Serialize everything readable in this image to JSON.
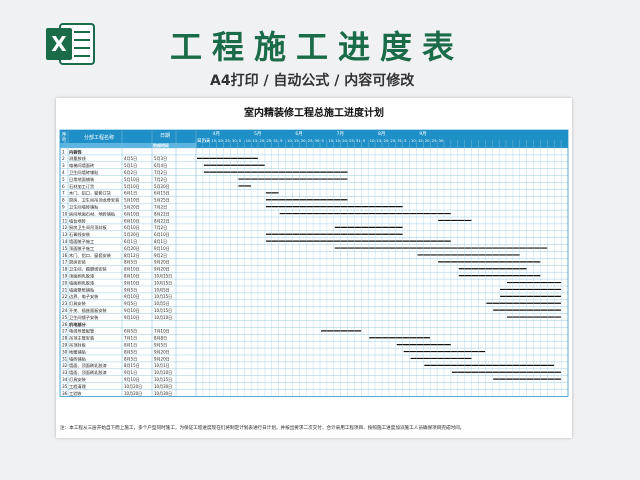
{
  "banner": {
    "title": "工程施工进度表",
    "subtitle": "A4打印 / 自动公式 / 内容可修改",
    "icon": "excel-icon",
    "accent": "#1a6b47"
  },
  "sheet": {
    "title": "室内精装修工程总施工进度计划",
    "header": {
      "seq": "序号",
      "name": "分部工程名称",
      "date": "日期",
      "start": "开始时间",
      "end": "完成时间",
      "days": "日历天",
      "months": [
        "4月",
        "5月",
        "6月",
        "7月",
        "8月",
        "9月"
      ],
      "day_ticks": [
        "5",
        "10",
        "15",
        "20",
        "25",
        "30",
        "5",
        "10",
        "15",
        "20",
        "25",
        "31",
        "5",
        "10",
        "15",
        "20",
        "25",
        "30",
        "5",
        "10",
        "15",
        "20",
        "25",
        "31",
        "5",
        "10",
        "15",
        "20",
        "25",
        "31",
        "5",
        "10",
        "15",
        "20",
        "25",
        "30"
      ]
    },
    "rows": [
      {
        "seq": "1",
        "name": "内装饰",
        "start": "",
        "end": "",
        "group": true
      },
      {
        "seq": "2",
        "name": "测量放线",
        "start": "4月5日",
        "end": "5月3日",
        "bar": [
          0,
          9
        ]
      },
      {
        "seq": "3",
        "name": "电梯间墙面砖",
        "start": "5月1日",
        "end": "6月4日",
        "bar": [
          1,
          10
        ]
      },
      {
        "seq": "4",
        "name": "卫生间墙砖铺贴",
        "start": "6月2日",
        "end": "7月2日",
        "bar": [
          1,
          22
        ]
      },
      {
        "seq": "5",
        "name": "日常地面铺装",
        "start": "5月10日",
        "end": "7月2日",
        "bar": [
          6,
          22
        ]
      },
      {
        "seq": "6",
        "name": "石材加工订货",
        "start": "5月10日",
        "end": "5月20日",
        "bar": [
          6,
          8
        ]
      },
      {
        "seq": "7",
        "name": "木门、铝口、窗套订货",
        "start": "6月1日",
        "end": "6月15日",
        "bar": [
          10,
          12
        ]
      },
      {
        "seq": "8",
        "name": "厨房、卫生间吊顶龙骨安装",
        "start": "5月10日",
        "end": "5月25日",
        "bar": [
          10,
          22
        ]
      },
      {
        "seq": "9",
        "name": "卫生间墙砖铺贴",
        "start": "5月20日",
        "end": "7月2日",
        "bar": [
          10,
          30
        ]
      },
      {
        "seq": "10",
        "name": "房间地面石材、地砖铺贴",
        "start": "6月10日",
        "end": "8月22日",
        "bar": [
          12,
          37
        ]
      },
      {
        "seq": "11",
        "name": "墙台地砖",
        "start": "6月10日",
        "end": "8月22日",
        "bar": [
          35,
          40
        ]
      },
      {
        "seq": "12",
        "name": "厨房卫生间吊顶封板",
        "start": "6月10日",
        "end": "7月2日",
        "bar": [
          20,
          30
        ]
      },
      {
        "seq": "13",
        "name": "石膏线安装",
        "start": "5月20日",
        "end": "6月10日",
        "bar": [
          10,
          30
        ]
      },
      {
        "seq": "14",
        "name": "墙面腻子施工",
        "start": "6月1日",
        "end": "8月1日",
        "bar": [
          10,
          37
        ]
      },
      {
        "seq": "15",
        "name": "顶面腻子施工",
        "start": "6月20日",
        "end": "9月10日",
        "bar": [
          20,
          51
        ]
      },
      {
        "seq": "16",
        "name": "木门、铝口、窗套安装",
        "start": "8月12日",
        "end": "9月2日",
        "bar": [
          32,
          47
        ]
      },
      {
        "seq": "17",
        "name": "厨房安装",
        "start": "8月5日",
        "end": "9月20日",
        "bar": [
          35,
          50
        ]
      },
      {
        "seq": "18",
        "name": "卫生间、踢脚线安装",
        "start": "8月10日",
        "end": "9月20日",
        "bar": [
          38,
          48
        ]
      },
      {
        "seq": "19",
        "name": "顶面刷乳胶漆",
        "start": "8月10日",
        "end": "10月15日",
        "bar": [
          38,
          50
        ]
      },
      {
        "seq": "20",
        "name": "墙面刷乳胶漆",
        "start": "9月10日",
        "end": "10月15日",
        "bar": [
          45,
          53
        ]
      },
      {
        "seq": "21",
        "name": "墙面壁纸铺贴",
        "start": "9月5日",
        "end": "10月5日",
        "bar": [
          44,
          53
        ]
      },
      {
        "seq": "22",
        "name": "边界、电子安装",
        "start": "9月10日",
        "end": "10月15日",
        "bar": [
          44,
          53
        ]
      },
      {
        "seq": "23",
        "name": "灯具安装",
        "start": "9月5日",
        "end": "10月5日",
        "bar": [
          42,
          53
        ]
      },
      {
        "seq": "24",
        "name": "开关、插座面板安装",
        "start": "9月10日",
        "end": "10月15日",
        "bar": [
          43,
          53
        ]
      },
      {
        "seq": "25",
        "name": "卫生间镜子安装",
        "start": "9月10日",
        "end": "10月10日",
        "bar": [
          45,
          53
        ]
      },
      {
        "seq": "26",
        "name": "机电部分",
        "start": "",
        "end": "",
        "group": true
      },
      {
        "seq": "27",
        "name": "电线导管配管",
        "start": "6月5日",
        "end": "7月10日",
        "bar": [
          18,
          24
        ]
      },
      {
        "seq": "28",
        "name": "吊顶主管安装",
        "start": "7月1日",
        "end": "8月8日",
        "bar": [
          25,
          34
        ]
      },
      {
        "seq": "29",
        "name": "吊顶封板",
        "start": "8月1日",
        "end": "9月5日",
        "bar": [
          29,
          37
        ]
      },
      {
        "seq": "30",
        "name": "地暖铺贴",
        "start": "8月5日",
        "end": "9月20日",
        "bar": [
          30,
          42
        ]
      },
      {
        "seq": "31",
        "name": "墙砖铺贴",
        "start": "8月5日",
        "end": "9月20日",
        "bar": [
          31,
          40
        ]
      },
      {
        "seq": "32",
        "name": "墙面、顶面刷乳胶漆",
        "start": "8月15日",
        "end": "10月1日",
        "bar": [
          33,
          52
        ]
      },
      {
        "seq": "33",
        "name": "墙面、顶面刷乳胶漆",
        "start": "9月1日",
        "end": "10月10日",
        "bar": [
          37,
          53
        ]
      },
      {
        "seq": "34",
        "name": "灯具安装",
        "start": "9月10日",
        "end": "10月15日",
        "bar": [
          43,
          53
        ]
      },
      {
        "seq": "35",
        "name": "工程清理",
        "start": "10月20日",
        "end": "10月30日",
        "bar": []
      },
      {
        "seq": "36",
        "name": "工验收",
        "start": "10月20日",
        "end": "10月30日",
        "bar": []
      }
    ],
    "note": "注：本工程从三层开始自下而上施工，多个户型同时施工，为保证工程进度现在们将制定计划表进行日计划，并按出要求二次交付，合计采用工程项目、按照施工进度加派施工人员确保项目完成时间。"
  }
}
